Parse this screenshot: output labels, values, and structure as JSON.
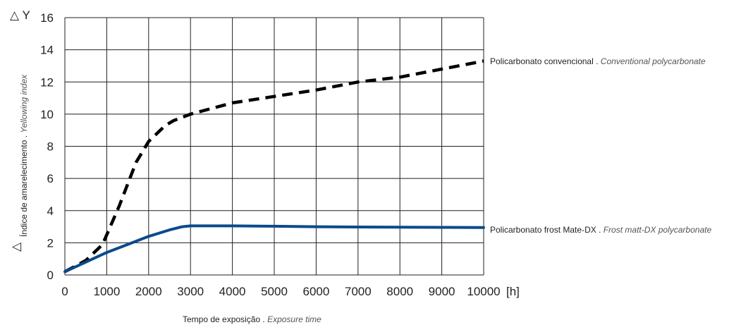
{
  "chart_data": {
    "type": "line",
    "x_unit": "[h]",
    "ylabel_top": "△ Y",
    "ylabel_symbol": "△",
    "ylabel_pt": "Índice de amarelecimento . ",
    "ylabel_en": "Yellowing index",
    "xlabel_pt": "Tempo de exposição . ",
    "xlabel_en": "Exposure time",
    "xlim": [
      0,
      10000
    ],
    "ylim": [
      0,
      16
    ],
    "x_ticks": [
      0,
      1000,
      2000,
      3000,
      4000,
      5000,
      6000,
      7000,
      8000,
      9000,
      10000
    ],
    "y_ticks": [
      0,
      2,
      4,
      6,
      8,
      10,
      12,
      14,
      16
    ],
    "grid": true,
    "legend_placement": "right of line ends",
    "series": [
      {
        "name_pt": "Policarbonato convencional . ",
        "name_en": "Conventional polycarbonate",
        "style": "dashed",
        "color": "#000000",
        "x": [
          0,
          500,
          900,
          1300,
          1700,
          2000,
          2200,
          2400,
          2600,
          3000,
          4000,
          5000,
          6000,
          7000,
          8000,
          9000,
          10000
        ],
        "y": [
          0.2,
          0.9,
          1.9,
          4.3,
          7.0,
          8.3,
          8.8,
          9.3,
          9.6,
          10.0,
          10.7,
          11.1,
          11.5,
          12.0,
          12.3,
          12.8,
          13.3
        ]
      },
      {
        "name_pt": "Policarbonato frost Mate-DX . ",
        "name_en": "Frost matt-DX polycarbonate",
        "style": "solid",
        "color": "#0b4a8b",
        "x": [
          0,
          500,
          1000,
          1500,
          2000,
          2500,
          2800,
          3000,
          4000,
          5000,
          6000,
          7000,
          8000,
          9000,
          10000
        ],
        "y": [
          0.2,
          0.8,
          1.4,
          1.9,
          2.4,
          2.8,
          3.0,
          3.05,
          3.05,
          3.03,
          3.0,
          2.98,
          2.97,
          2.96,
          2.95
        ]
      }
    ]
  }
}
